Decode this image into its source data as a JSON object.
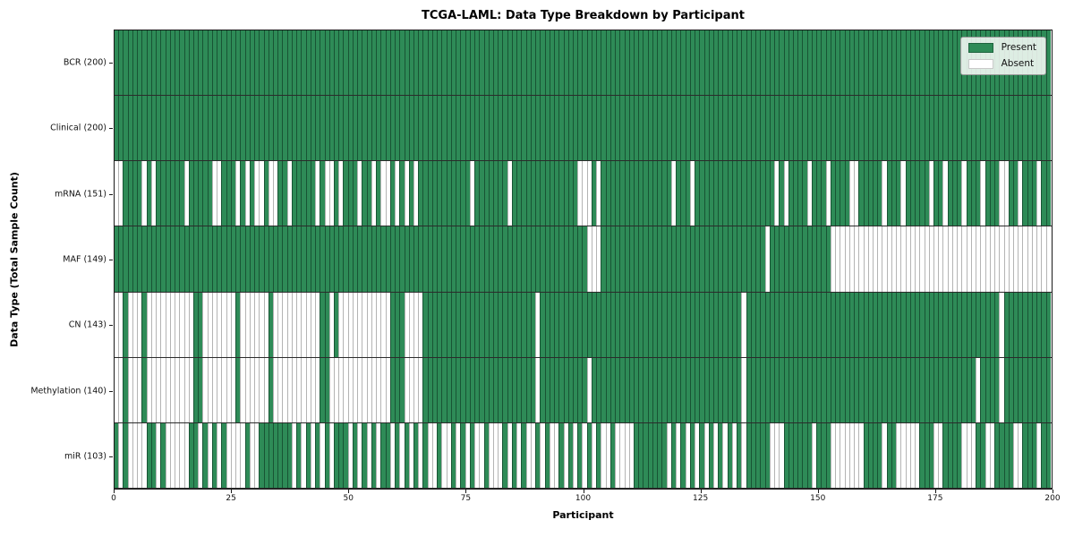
{
  "chart_data": {
    "type": "heatmap",
    "title": "TCGA-LAML: Data Type Breakdown by Participant",
    "xlabel": "Participant",
    "ylabel": "Data Type (Total Sample Count)",
    "x_range": [
      0,
      200
    ],
    "x_ticks": [
      0,
      25,
      50,
      75,
      100,
      125,
      150,
      175,
      200
    ],
    "n_participants": 200,
    "grid": "row-separators-only",
    "colors": {
      "present": "#2e8b57",
      "absent": "#ffffff"
    },
    "legend": {
      "position": "upper-right",
      "entries": [
        {
          "label": "Present",
          "color": "#2e8b57"
        },
        {
          "label": "Absent",
          "color": "#ffffff"
        }
      ]
    },
    "series": [
      {
        "name": "BCR",
        "label": "BCR (200)",
        "present_count": 200,
        "absent_indices": []
      },
      {
        "name": "Clinical",
        "label": "Clinical (200)",
        "present_count": 200,
        "absent_indices": []
      },
      {
        "name": "mRNA",
        "label": "mRNA (151)",
        "present_count": 151,
        "absent_indices": [
          0,
          1,
          6,
          8,
          15,
          21,
          22,
          26,
          28,
          30,
          31,
          33,
          34,
          37,
          43,
          45,
          46,
          48,
          52,
          55,
          57,
          58,
          60,
          62,
          64,
          76,
          84,
          99,
          100,
          101,
          103,
          119,
          123,
          141,
          143,
          148,
          152,
          157,
          158,
          164,
          168,
          174,
          177,
          181,
          185,
          189,
          190,
          193,
          197
        ]
      },
      {
        "name": "MAF",
        "label": "MAF (149)",
        "present_count": 149,
        "absent_indices": [
          101,
          102,
          103,
          139,
          153,
          154,
          155,
          156,
          157,
          158,
          159,
          160,
          161,
          162,
          163,
          164,
          165,
          166,
          167,
          168,
          169,
          170,
          171,
          172,
          173,
          174,
          175,
          176,
          177,
          178,
          179,
          180,
          181,
          182,
          183,
          184,
          185,
          186,
          187,
          188,
          189,
          190,
          191,
          192,
          193,
          194,
          195,
          196,
          197,
          198,
          199
        ]
      },
      {
        "name": "CN",
        "label": "CN (143)",
        "present_count": 143,
        "absent_indices": [
          0,
          1,
          3,
          4,
          5,
          7,
          8,
          9,
          10,
          11,
          12,
          13,
          14,
          15,
          16,
          19,
          20,
          21,
          22,
          23,
          24,
          25,
          27,
          28,
          29,
          30,
          31,
          32,
          34,
          35,
          36,
          37,
          38,
          39,
          40,
          41,
          42,
          43,
          46,
          48,
          49,
          50,
          51,
          52,
          53,
          54,
          55,
          56,
          57,
          58,
          62,
          63,
          64,
          65,
          90,
          134,
          189
        ]
      },
      {
        "name": "Methylation",
        "label": "Methylation (140)",
        "present_count": 140,
        "absent_indices": [
          0,
          1,
          3,
          4,
          5,
          7,
          8,
          9,
          10,
          11,
          12,
          13,
          14,
          15,
          16,
          19,
          20,
          21,
          22,
          23,
          24,
          25,
          27,
          28,
          29,
          30,
          31,
          32,
          34,
          35,
          36,
          37,
          38,
          39,
          40,
          41,
          42,
          43,
          46,
          47,
          48,
          49,
          50,
          51,
          52,
          53,
          54,
          55,
          56,
          57,
          58,
          62,
          63,
          64,
          65,
          90,
          101,
          134,
          184,
          189
        ]
      },
      {
        "name": "miR",
        "label": "miR (103)",
        "present_count": 103,
        "absent_indices": [
          1,
          3,
          4,
          5,
          6,
          9,
          11,
          12,
          13,
          14,
          15,
          18,
          20,
          22,
          24,
          25,
          26,
          27,
          29,
          30,
          38,
          40,
          42,
          44,
          46,
          50,
          52,
          54,
          56,
          59,
          61,
          63,
          65,
          67,
          68,
          70,
          71,
          73,
          75,
          77,
          78,
          80,
          81,
          82,
          84,
          86,
          88,
          89,
          91,
          93,
          94,
          96,
          98,
          100,
          102,
          104,
          105,
          107,
          108,
          109,
          110,
          118,
          120,
          122,
          124,
          126,
          128,
          130,
          132,
          134,
          140,
          141,
          142,
          149,
          153,
          154,
          155,
          156,
          157,
          158,
          159,
          164,
          167,
          168,
          169,
          170,
          171,
          175,
          176,
          181,
          182,
          183,
          186,
          187,
          192,
          193,
          197
        ]
      }
    ]
  }
}
